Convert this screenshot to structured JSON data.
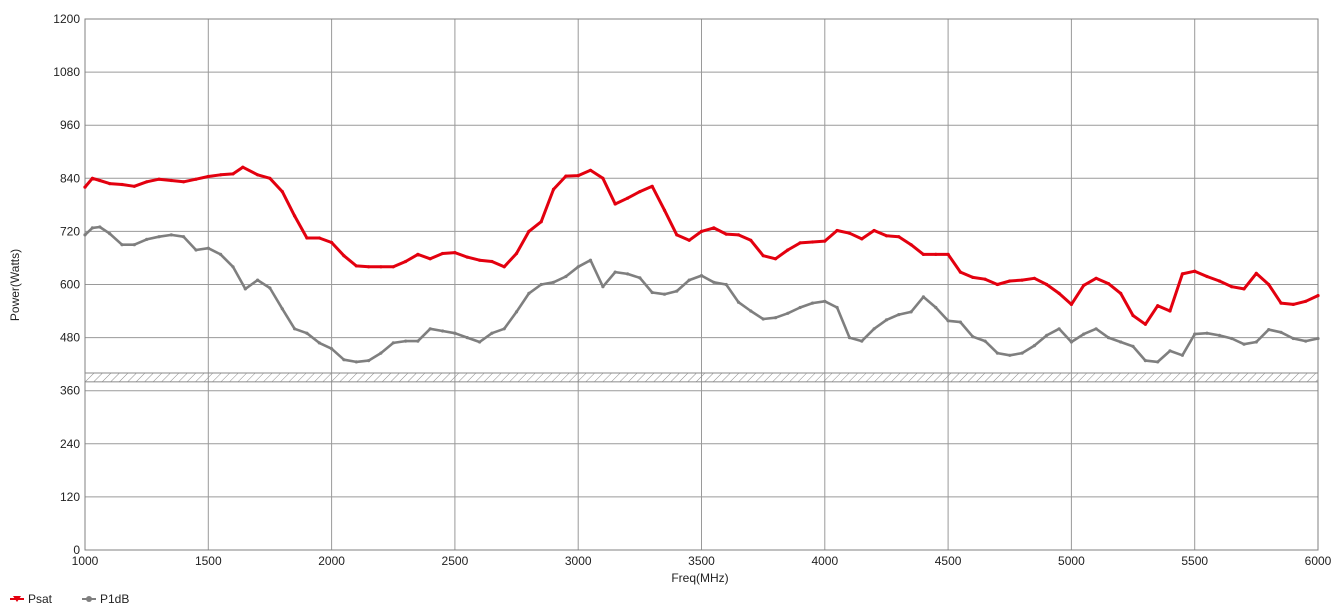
{
  "chart_data": {
    "type": "line",
    "xlabel": "Freq(MHz)",
    "ylabel": "Power(Watts)",
    "xlim": [
      1000,
      6000
    ],
    "ylim": [
      0,
      1200
    ],
    "x_ticks": [
      1000,
      1500,
      2000,
      2500,
      3000,
      3500,
      4000,
      4500,
      5000,
      5500,
      6000
    ],
    "y_ticks": [
      0,
      120,
      240,
      360,
      480,
      600,
      720,
      840,
      960,
      1080,
      1200
    ],
    "grid": true,
    "legend_position": "bottom-left",
    "reference_band": [
      380,
      400
    ],
    "series": [
      {
        "name": "Psat",
        "color": "#e3000f",
        "x": [
          1000,
          1030,
          1060,
          1100,
          1150,
          1200,
          1250,
          1300,
          1350,
          1400,
          1450,
          1500,
          1550,
          1600,
          1640,
          1700,
          1750,
          1800,
          1850,
          1900,
          1950,
          2000,
          2050,
          2100,
          2150,
          2200,
          2250,
          2300,
          2350,
          2400,
          2450,
          2500,
          2550,
          2600,
          2650,
          2700,
          2750,
          2800,
          2850,
          2900,
          2950,
          3000,
          3050,
          3100,
          3150,
          3200,
          3250,
          3300,
          3350,
          3400,
          3450,
          3500,
          3550,
          3600,
          3650,
          3700,
          3750,
          3800,
          3850,
          3900,
          3950,
          4000,
          4050,
          4100,
          4150,
          4200,
          4250,
          4300,
          4350,
          4400,
          4450,
          4500,
          4550,
          4600,
          4650,
          4700,
          4750,
          4800,
          4850,
          4900,
          4950,
          5000,
          5050,
          5100,
          5150,
          5200,
          5250,
          5300,
          5350,
          5400,
          5450,
          5500,
          5550,
          5600,
          5650,
          5700,
          5750,
          5800,
          5850,
          5900,
          5950,
          6000
        ],
        "y": [
          820,
          840,
          835,
          828,
          826,
          822,
          832,
          838,
          835,
          832,
          838,
          844,
          848,
          850,
          865,
          848,
          840,
          810,
          755,
          705,
          705,
          695,
          665,
          642,
          640,
          640,
          640,
          652,
          668,
          658,
          670,
          672,
          662,
          655,
          652,
          640,
          670,
          720,
          742,
          815,
          845,
          846,
          858,
          840,
          782,
          795,
          810,
          822,
          768,
          712,
          700,
          720,
          728,
          714,
          712,
          700,
          665,
          658,
          678,
          694,
          696,
          698,
          722,
          716,
          703,
          722,
          710,
          708,
          690,
          668,
          668,
          668,
          628,
          616,
          612,
          600,
          608,
          610,
          614,
          600,
          580,
          555,
          598,
          614,
          602,
          580,
          530,
          510,
          552,
          540,
          624,
          630,
          618,
          608,
          595,
          590,
          625,
          600,
          558,
          555,
          562,
          575
        ]
      },
      {
        "name": "P1dB",
        "color": "#7f7f7f",
        "x": [
          1000,
          1030,
          1060,
          1100,
          1150,
          1200,
          1250,
          1300,
          1350,
          1400,
          1450,
          1500,
          1550,
          1600,
          1650,
          1700,
          1750,
          1800,
          1850,
          1900,
          1950,
          2000,
          2050,
          2100,
          2150,
          2200,
          2250,
          2300,
          2350,
          2400,
          2450,
          2500,
          2550,
          2600,
          2650,
          2700,
          2750,
          2800,
          2850,
          2900,
          2950,
          3000,
          3050,
          3100,
          3150,
          3200,
          3250,
          3300,
          3350,
          3400,
          3450,
          3500,
          3550,
          3600,
          3650,
          3700,
          3750,
          3800,
          3850,
          3900,
          3950,
          4000,
          4050,
          4100,
          4150,
          4200,
          4250,
          4300,
          4350,
          4400,
          4450,
          4500,
          4550,
          4600,
          4650,
          4700,
          4750,
          4800,
          4850,
          4900,
          4950,
          5000,
          5050,
          5100,
          5150,
          5200,
          5250,
          5300,
          5350,
          5400,
          5450,
          5500,
          5550,
          5600,
          5650,
          5700,
          5750,
          5800,
          5850,
          5900,
          5950,
          6000
        ],
        "y": [
          712,
          728,
          730,
          715,
          690,
          690,
          702,
          708,
          712,
          708,
          678,
          682,
          668,
          640,
          590,
          610,
          592,
          545,
          500,
          490,
          468,
          455,
          430,
          425,
          428,
          445,
          468,
          472,
          472,
          500,
          495,
          490,
          480,
          470,
          490,
          500,
          538,
          580,
          600,
          605,
          618,
          640,
          655,
          595,
          628,
          624,
          615,
          582,
          578,
          585,
          610,
          620,
          605,
          600,
          560,
          540,
          522,
          525,
          535,
          548,
          558,
          562,
          548,
          480,
          472,
          500,
          520,
          532,
          538,
          572,
          548,
          518,
          515,
          482,
          472,
          445,
          440,
          445,
          462,
          485,
          500,
          470,
          488,
          500,
          480,
          470,
          460,
          428,
          425,
          450,
          440,
          488,
          490,
          485,
          478,
          465,
          470,
          498,
          492,
          478,
          472,
          478
        ]
      }
    ]
  }
}
